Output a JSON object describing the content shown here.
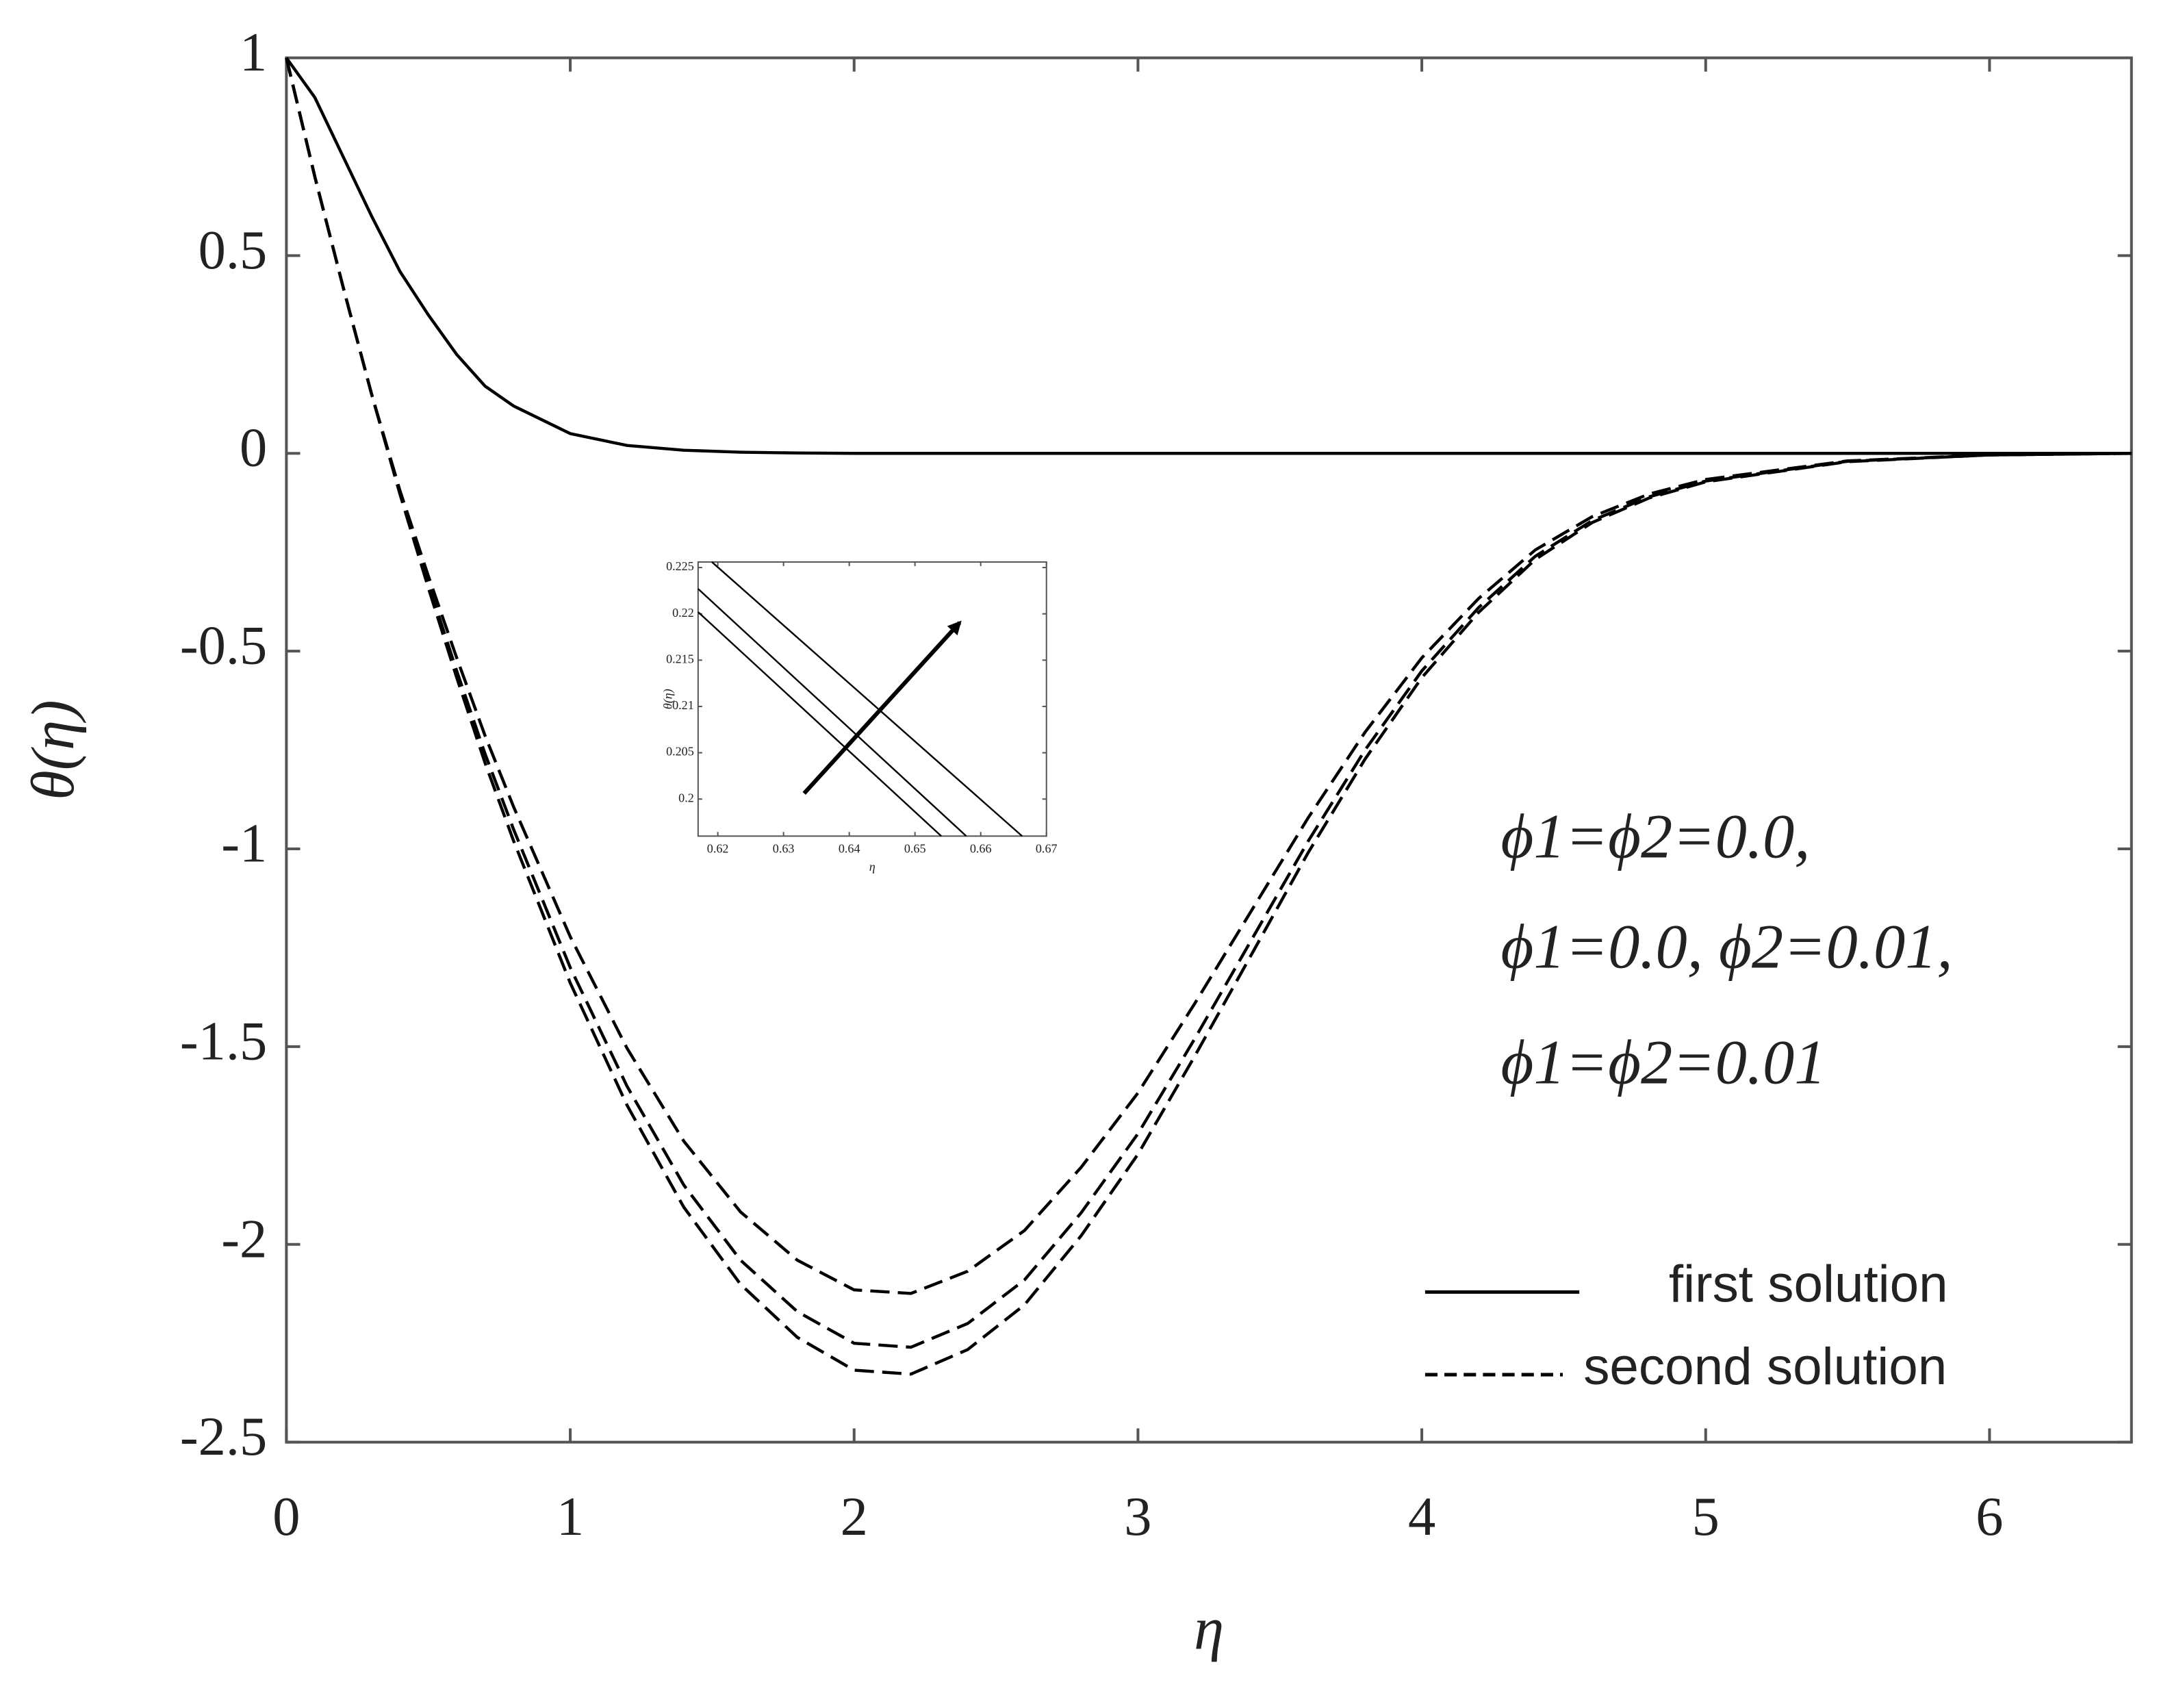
{
  "chart_data": [
    {
      "type": "line",
      "xlabel": "η",
      "ylabel": "θ(η)",
      "xlim": [
        0,
        6.5
      ],
      "ylim": [
        -2.5,
        1
      ],
      "xticks": [
        0,
        1,
        2,
        3,
        4,
        5,
        6
      ],
      "yticks": [
        1,
        0.5,
        0,
        -0.5,
        -1,
        -1.5,
        -2,
        -2.5
      ],
      "x": [
        0,
        0.1,
        0.2,
        0.3,
        0.4,
        0.5,
        0.6,
        0.7,
        0.8,
        1.0,
        1.2,
        1.4,
        1.6,
        1.8,
        2.0,
        2.2,
        2.4,
        2.6,
        2.8,
        3.0,
        3.2,
        3.4,
        3.6,
        3.8,
        4.0,
        4.2,
        4.4,
        4.6,
        4.8,
        5.0,
        5.5,
        6.0,
        6.5
      ],
      "series": [
        {
          "color": "#000000",
          "dash": false,
          "values": [
            1,
            0.9,
            0.75,
            0.6,
            0.46,
            0.35,
            0.25,
            0.17,
            0.12,
            0.05,
            0.02,
            0.008,
            0.003,
            0.001,
            0,
            0,
            0,
            0,
            0,
            0,
            0,
            0,
            0,
            0,
            0,
            0,
            0,
            0,
            0,
            0,
            0,
            0,
            0
          ]
        },
        {
          "color": "#000000",
          "dash": true,
          "values": [
            1,
            0.7,
            0.42,
            0.15,
            -0.094,
            -0.31,
            -0.517,
            -0.714,
            -0.893,
            -1.222,
            -1.504,
            -1.739,
            -1.918,
            -2.04,
            -2.115,
            -2.124,
            -2.068,
            -1.965,
            -1.805,
            -1.617,
            -1.391,
            -1.156,
            -0.921,
            -0.705,
            -0.517,
            -0.367,
            -0.244,
            -0.16,
            -0.103,
            -0.066,
            -0.019,
            -0.004,
            0
          ]
        },
        {
          "color": "#000000",
          "dash": true,
          "values": [
            1,
            0.7,
            0.42,
            0.15,
            -0.1,
            -0.33,
            -0.55,
            -0.76,
            -0.95,
            -1.3,
            -1.6,
            -1.85,
            -2.04,
            -2.17,
            -2.25,
            -2.26,
            -2.2,
            -2.09,
            -1.92,
            -1.72,
            -1.48,
            -1.23,
            -0.98,
            -0.75,
            -0.55,
            -0.39,
            -0.26,
            -0.17,
            -0.11,
            -0.07,
            -0.02,
            -0.004,
            0
          ]
        },
        {
          "color": "#000000",
          "dash": true,
          "values": [
            1,
            0.7,
            0.42,
            0.15,
            -0.103,
            -0.34,
            -0.567,
            -0.783,
            -0.979,
            -1.339,
            -1.648,
            -1.906,
            -2.101,
            -2.235,
            -2.318,
            -2.328,
            -2.266,
            -2.153,
            -1.978,
            -1.772,
            -1.524,
            -1.267,
            -1.009,
            -0.773,
            -0.567,
            -0.402,
            -0.268,
            -0.175,
            -0.113,
            -0.072,
            -0.021,
            -0.004,
            0
          ]
        }
      ],
      "legend": [
        {
          "label": "first solution",
          "dash": false
        },
        {
          "label": "second solution",
          "dash": true
        }
      ],
      "annotations": [
        "ϕ1=ϕ2=0.0,",
        "ϕ1=0.0, ϕ2=0.01,",
        "ϕ1=ϕ2=0.01"
      ]
    },
    {
      "type": "line",
      "xlabel": "η",
      "ylabel": "θ(η)",
      "xlim": [
        0.617,
        0.67
      ],
      "ylim": [
        0.196,
        0.2256
      ],
      "xticks": [
        0.62,
        0.63,
        0.64,
        0.65,
        0.66,
        0.67
      ],
      "yticks": [
        0.225,
        0.22,
        0.215,
        0.21,
        0.205,
        0.2
      ],
      "series": [
        {
          "color": "#000000",
          "dash": false,
          "x": [
            0.6191,
            0.6663
          ],
          "values": [
            0.2256,
            0.196
          ]
        },
        {
          "color": "#000000",
          "dash": false,
          "x": [
            0.617,
            0.6578
          ],
          "values": [
            0.2227,
            0.196
          ]
        },
        {
          "color": "#000000",
          "dash": false,
          "x": [
            0.617,
            0.654
          ],
          "values": [
            0.2202,
            0.196
          ]
        }
      ]
    }
  ]
}
